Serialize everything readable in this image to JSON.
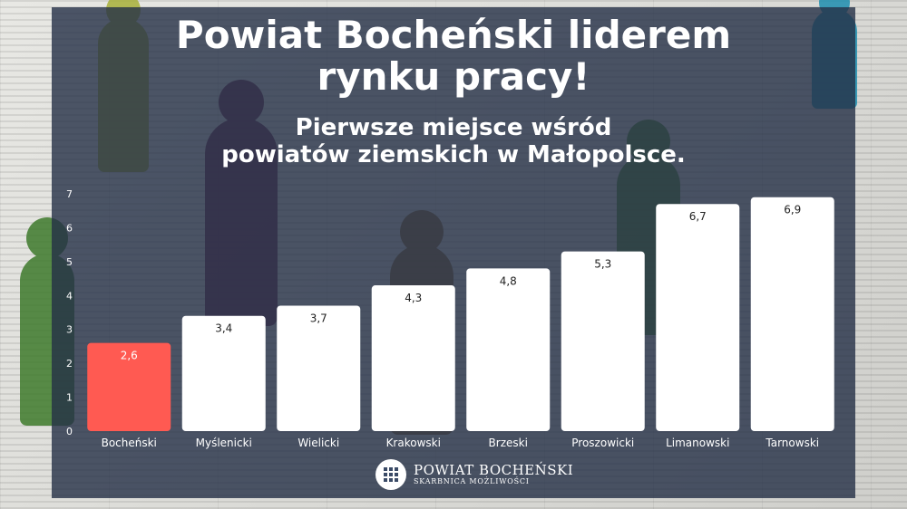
{
  "title": "Powiat Bocheński liderem\nrynku pracy!",
  "subtitle": "Pierwsze miejsce wśród\npowiatów ziemskich w Małopolsce.",
  "logo": {
    "name": "POWIAT BOCHEŃSKI",
    "tagline": "SKARBNICA MOŻLIWOŚCI"
  },
  "colors": {
    "highlight": "#ff5a52",
    "bar": "#ffffff",
    "axis_text": "#ffffff",
    "value_text": "#222222"
  },
  "chart_data": {
    "type": "bar",
    "title": "",
    "xlabel": "",
    "ylabel": "",
    "ylim": [
      0,
      7
    ],
    "yticks": [
      0,
      1,
      2,
      3,
      4,
      5,
      6,
      7
    ],
    "grid": false,
    "categories": [
      "Bocheński",
      "Myślenicki",
      "Wielicki",
      "Krakowski",
      "Brzeski",
      "Proszowicki",
      "Limanowski",
      "Tarnowski"
    ],
    "values": [
      2.6,
      3.4,
      3.7,
      4.3,
      4.8,
      5.3,
      6.7,
      6.9
    ],
    "labels": [
      "2,6",
      "3,4",
      "3,7",
      "4,3",
      "4,8",
      "5,3",
      "6,7",
      "6,9"
    ],
    "highlight_index": 0
  }
}
